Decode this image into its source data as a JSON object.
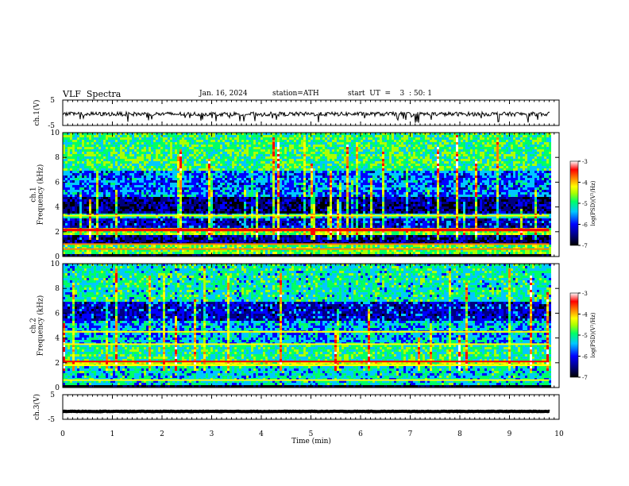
{
  "header": {
    "title": "VLF  Spectra",
    "date": "Jan. 16, 2024",
    "station": "station=ATH",
    "start": "start  UT  =    3  : 50: 1"
  },
  "chart_data": [
    {
      "type": "line",
      "name": "ch1-waveform",
      "ylabel": "ch.1(V)",
      "yticks": [
        "5",
        "-5"
      ],
      "ylim": [
        -5,
        5
      ],
      "baseline": -0.5,
      "noise": 0.8,
      "spikes": "frequent downward spikes to about -3 V"
    },
    {
      "type": "heatmap",
      "name": "ch1-spectrogram",
      "ylabel": "ch.1\nFrequency  (kHz)",
      "ylim": [
        0,
        10
      ],
      "yticks": [
        0,
        2,
        4,
        6,
        8,
        10
      ],
      "xlim": [
        0,
        10
      ],
      "data_extent_min": 9.8,
      "bands": [
        {
          "f0": 0.0,
          "f1": 0.3,
          "level": -7.0
        },
        {
          "f0": 0.3,
          "f1": 1.1,
          "level": -5.0
        },
        {
          "f0": 1.1,
          "f1": 1.9,
          "level": -6.6
        },
        {
          "f0": 1.9,
          "f1": 2.4,
          "level": -4.9
        },
        {
          "f0": 2.4,
          "f1": 3.1,
          "level": -6.3
        },
        {
          "f0": 3.1,
          "f1": 3.6,
          "level": -5.5
        },
        {
          "f0": 3.6,
          "f1": 5.0,
          "level": -6.6
        },
        {
          "f0": 5.0,
          "f1": 7.0,
          "level": -5.9
        },
        {
          "f0": 7.0,
          "f1": 10.0,
          "level": -5.2
        }
      ],
      "lines_khz": [
        0.6,
        1.0,
        2.1,
        2.2,
        3.3
      ],
      "colorbar": {
        "label": "log(PSD)(V²/Hz)",
        "ticks": [
          "-3",
          "-4",
          "-5",
          "-6",
          "-7"
        ],
        "range": [
          -7,
          -3
        ]
      }
    },
    {
      "type": "heatmap",
      "name": "ch2-spectrogram",
      "ylabel": "ch.2\nFrequency  (kHz)",
      "ylim": [
        0,
        10
      ],
      "yticks": [
        0,
        2,
        4,
        6,
        8,
        10
      ],
      "xlim": [
        0,
        10
      ],
      "data_extent_min": 9.8,
      "bands": [
        {
          "f0": 0.0,
          "f1": 0.3,
          "level": -7.0
        },
        {
          "f0": 0.3,
          "f1": 1.9,
          "level": -5.5
        },
        {
          "f0": 1.9,
          "f1": 2.3,
          "level": -4.6
        },
        {
          "f0": 2.3,
          "f1": 3.5,
          "level": -5.3
        },
        {
          "f0": 3.5,
          "f1": 5.5,
          "level": -5.7
        },
        {
          "f0": 5.5,
          "f1": 7.0,
          "level": -6.3
        },
        {
          "f0": 7.0,
          "f1": 10.0,
          "level": -5.4
        }
      ],
      "lines_khz": [
        0.6,
        1.8,
        2.1,
        3.5,
        4.5
      ],
      "colorbar": {
        "label": "log(PSD)(V²/Hz)",
        "ticks": [
          "-3",
          "-4",
          "-5",
          "-6",
          "-7"
        ],
        "range": [
          -7,
          -3
        ]
      }
    },
    {
      "type": "line",
      "name": "ch3-waveform",
      "ylabel": "ch.3(V)",
      "yticks": [
        "5",
        "-5"
      ],
      "ylim": [
        -5,
        5
      ],
      "baseline": -1.8,
      "noise": 0.1
    }
  ],
  "xaxis": {
    "label": "Time  (min)",
    "ticks": [
      "0",
      "1",
      "2",
      "3",
      "4",
      "5",
      "6",
      "7",
      "8",
      "9",
      "10"
    ],
    "range": [
      0,
      10
    ]
  },
  "colors": {
    "ink": "#000000",
    "colormap": [
      "#000000",
      "#000080",
      "#0000ff",
      "#00c8ff",
      "#00ff66",
      "#aaff00",
      "#ffff00",
      "#ff8000",
      "#ff0000",
      "#ffffff"
    ]
  }
}
